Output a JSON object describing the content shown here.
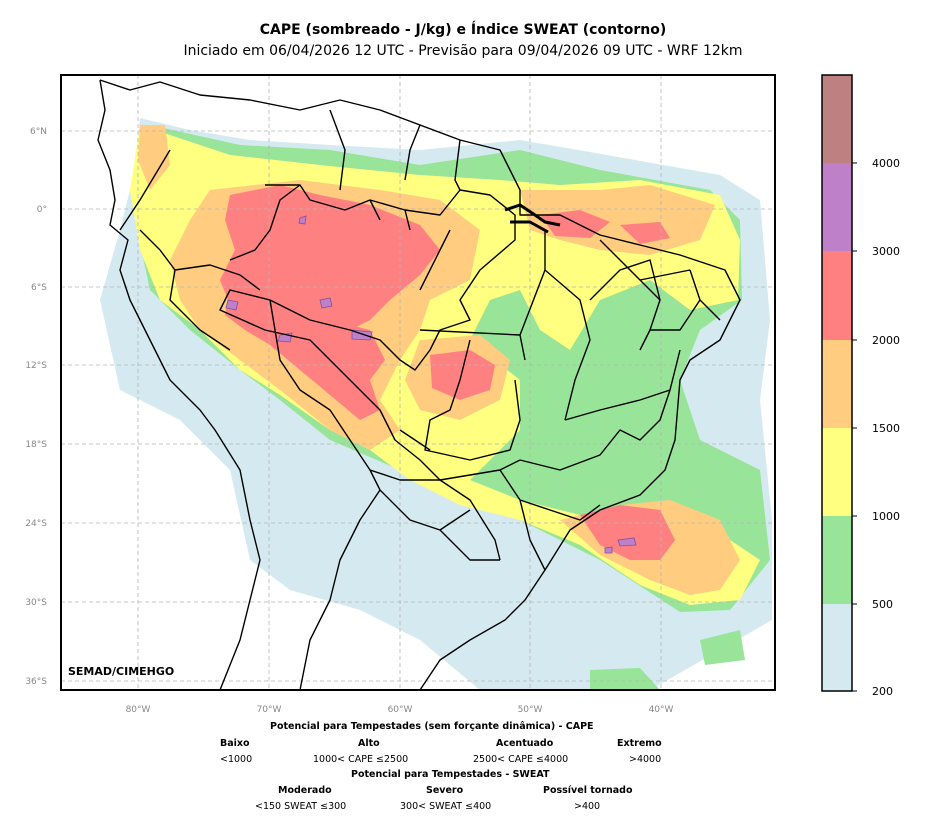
{
  "header": {
    "title": "CAPE (sombreado - J/kg) e Índice SWEAT (contorno)",
    "subtitle": "Iniciado em 06/04/2026 12 UTC - Previsão para 09/04/2026 09 UTC - WRF 12km"
  },
  "map": {
    "credit": "SEMAD/CIMEHGO",
    "lat_ticks": [
      "6°N",
      "0°",
      "6°S",
      "12°S",
      "18°S",
      "24°S",
      "30°S",
      "36°S"
    ],
    "lon_ticks": [
      "80°W",
      "70°W",
      "60°W",
      "50°W",
      "40°W"
    ]
  },
  "colorbar": {
    "levels": [
      "200",
      "500",
      "1000",
      "1500",
      "2000",
      "3000",
      "4000"
    ],
    "colors": [
      "#d5eaf0",
      "#98e498",
      "#ffff80",
      "#ffcc80",
      "#ff8080",
      "#be80c8",
      "#be8080"
    ],
    "contour_color": "#7e50a0"
  },
  "legend": {
    "cape_title": "Potencial para Tempestades (sem forçante dinâmica) - CAPE",
    "cape_items": [
      {
        "label": "Baixo",
        "range": "<1000"
      },
      {
        "label": "Alto",
        "range": "1000< CAPE ≤2500"
      },
      {
        "label": "Acentuado",
        "range": "2500< CAPE ≤4000"
      },
      {
        "label": "Extremo",
        "range": ">4000"
      }
    ],
    "sweat_title": "Potencial para Tempestades - SWEAT",
    "sweat_items": [
      {
        "label": "Moderado",
        "range": "<150 SWEAT ≤300"
      },
      {
        "label": "Severo",
        "range": "300< SWEAT ≤400"
      },
      {
        "label": "Possível tornado",
        "range": ">400"
      }
    ]
  }
}
